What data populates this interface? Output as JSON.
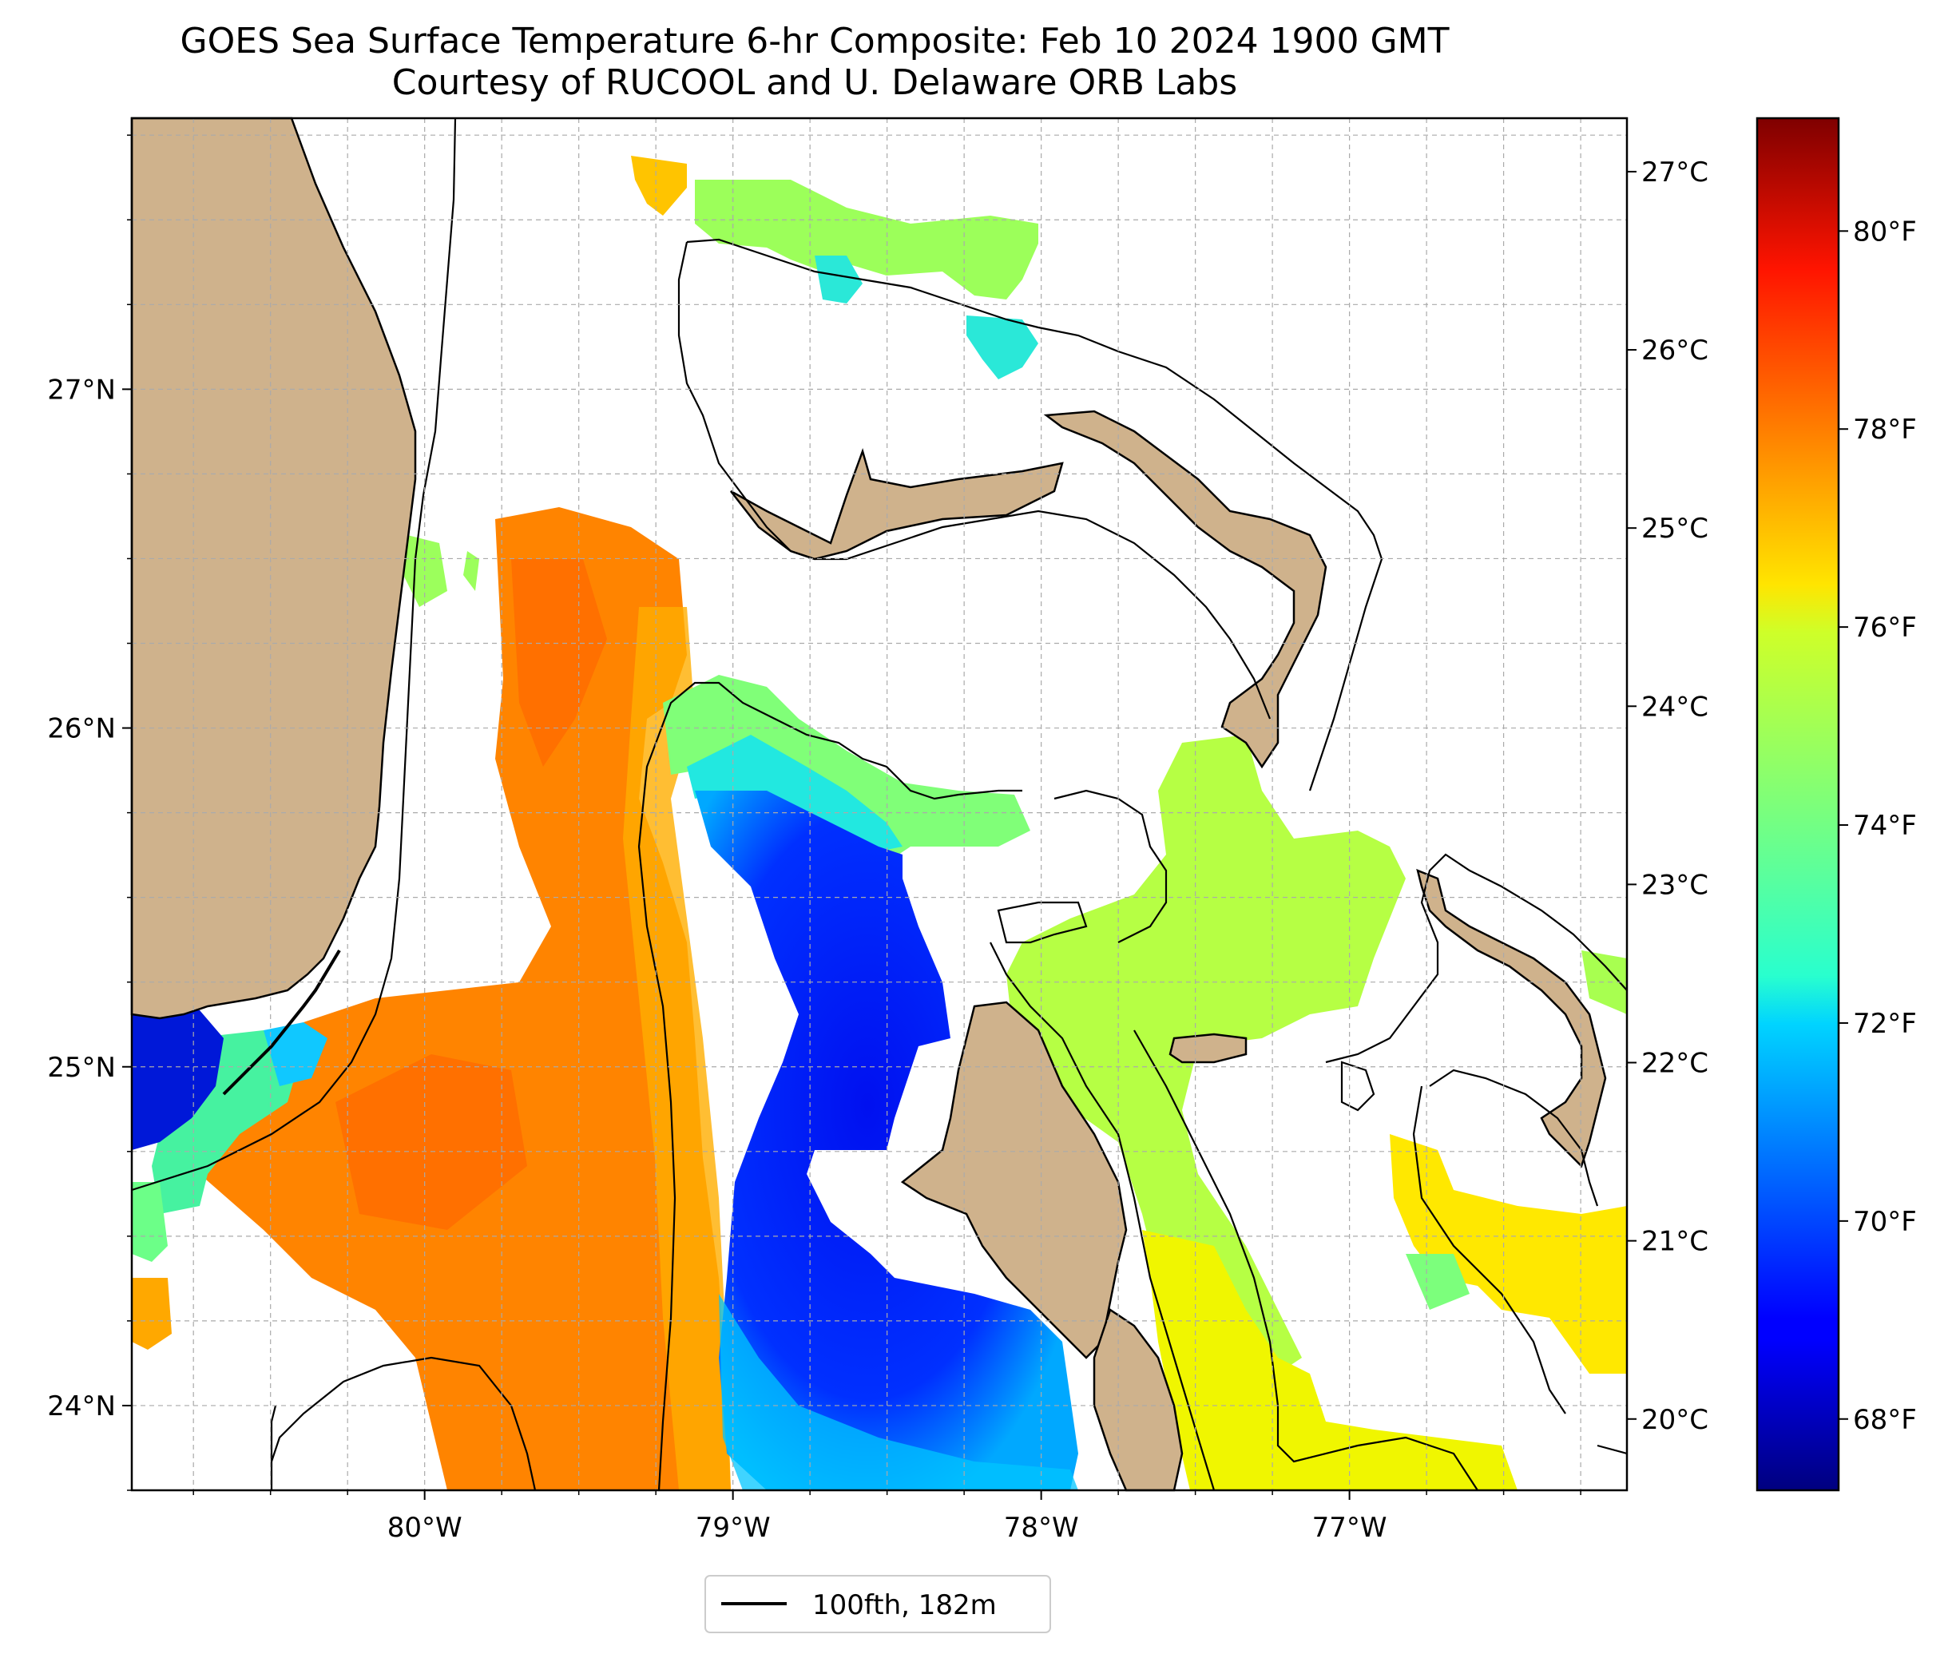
{
  "title": {
    "line1": "GOES Sea Surface Temperature 6-hr Composite: Feb 10 2024 1900 GMT",
    "line2": "Courtesy of RUCOOL and U. Delaware ORB Labs"
  },
  "map": {
    "lon_range": [
      -80.95,
      -76.1
    ],
    "lat_range": [
      23.75,
      27.8
    ],
    "lon_ticks": [
      {
        "value": -80,
        "label": "80°W"
      },
      {
        "value": -79,
        "label": "79°W"
      },
      {
        "value": -78,
        "label": "78°W"
      },
      {
        "value": -77,
        "label": "77°W"
      }
    ],
    "lat_ticks": [
      {
        "value": 24,
        "label": "24°N"
      },
      {
        "value": 25,
        "label": "25°N"
      },
      {
        "value": 26,
        "label": "26°N"
      },
      {
        "value": 27,
        "label": "27°N"
      }
    ],
    "gridlines": true,
    "land_color": "#cfb28c"
  },
  "colorbar": {
    "colormap": "jet",
    "min_c": 19.6,
    "max_c": 27.3,
    "celsius_ticks": [
      {
        "value": 20,
        "label": "20°C"
      },
      {
        "value": 21,
        "label": "21°C"
      },
      {
        "value": 22,
        "label": "22°C"
      },
      {
        "value": 23,
        "label": "23°C"
      },
      {
        "value": 24,
        "label": "24°C"
      },
      {
        "value": 25,
        "label": "25°C"
      },
      {
        "value": 26,
        "label": "26°C"
      },
      {
        "value": 27,
        "label": "27°C"
      }
    ],
    "fahrenheit_ticks": [
      {
        "value": 68,
        "label": "68°F"
      },
      {
        "value": 70,
        "label": "70°F"
      },
      {
        "value": 72,
        "label": "72°F"
      },
      {
        "value": 74,
        "label": "74°F"
      },
      {
        "value": 76,
        "label": "76°F"
      },
      {
        "value": 78,
        "label": "78°F"
      },
      {
        "value": 80,
        "label": "80°F"
      }
    ]
  },
  "legend": {
    "label": "100fth, 182m",
    "line_color": "#000000",
    "position": "bottom-center"
  }
}
